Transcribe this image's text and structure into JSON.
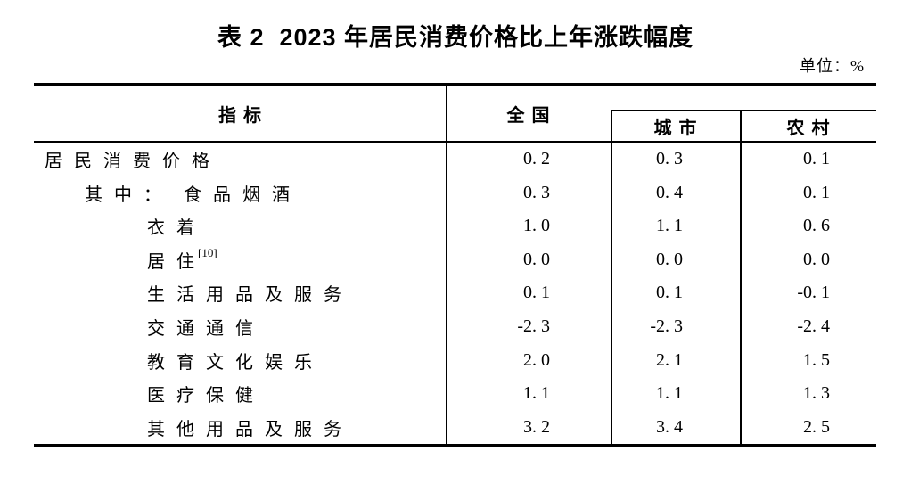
{
  "title": "表 2  2023 年居民消费价格比上年涨跌幅度",
  "unit_label": "单位：%",
  "table": {
    "columns": {
      "indicator": "指标",
      "national": "全国",
      "urban": "城市",
      "rural": "农村"
    },
    "rows": [
      {
        "prefix": "",
        "label": "居民消费价格",
        "sup": "",
        "national": "0. 2",
        "urban": "0. 3",
        "rural": "0. 1"
      },
      {
        "prefix": "其中：",
        "label": "食品烟酒",
        "sup": "",
        "national": "0. 3",
        "urban": "0. 4",
        "rural": "0. 1"
      },
      {
        "prefix": "",
        "label": "衣着",
        "sup": "",
        "national": "1. 0",
        "urban": "1. 1",
        "rural": "0. 6"
      },
      {
        "prefix": "",
        "label": "居住",
        "sup": "[10]",
        "national": "0. 0",
        "urban": "0. 0",
        "rural": "0. 0"
      },
      {
        "prefix": "",
        "label": "生活用品及服务",
        "sup": "",
        "national": "0. 1",
        "urban": "0. 1",
        "rural": "-0. 1"
      },
      {
        "prefix": "",
        "label": "交通通信",
        "sup": "",
        "national": "-2. 3",
        "urban": "-2. 3",
        "rural": "-2. 4"
      },
      {
        "prefix": "",
        "label": "教育文化娱乐",
        "sup": "",
        "national": "2. 0",
        "urban": "2. 1",
        "rural": "1. 5"
      },
      {
        "prefix": "",
        "label": "医疗保健",
        "sup": "",
        "national": "1. 1",
        "urban": "1. 1",
        "rural": "1. 3"
      },
      {
        "prefix": "",
        "label": "其他用品及服务",
        "sup": "",
        "national": "3. 2",
        "urban": "3. 4",
        "rural": "2. 5"
      }
    ]
  }
}
